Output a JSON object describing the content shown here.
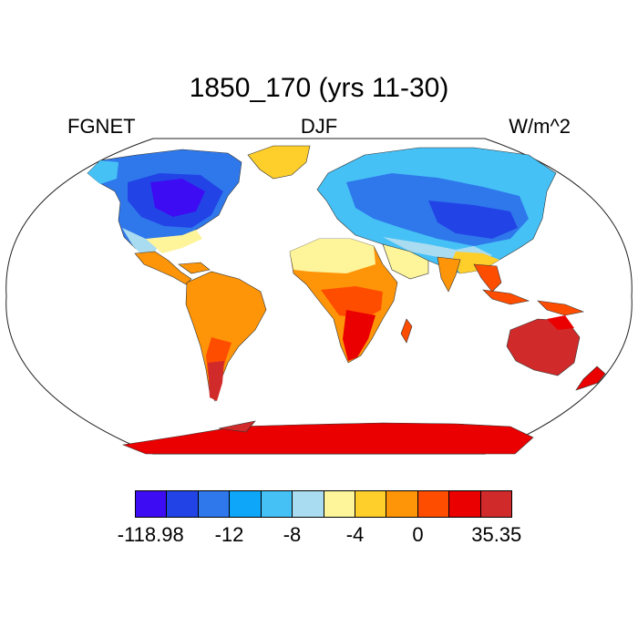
{
  "title": "1850_170 (yrs 11-30)",
  "subtitle_left": "FGNET",
  "subtitle_center": "DJF",
  "subtitle_right": "W/m^2",
  "colorbar": {
    "colors": [
      "#3e0cf2",
      "#2244e6",
      "#2f78ec",
      "#0da6f8",
      "#45c1f5",
      "#a9dcf1",
      "#fef49a",
      "#fece2b",
      "#fe9508",
      "#ff4d00",
      "#ea0000",
      "#d12a2a"
    ],
    "labels": [
      "-118.98",
      "-12",
      "-8",
      "-4",
      "0",
      "35.35"
    ]
  },
  "regions": [
    {
      "name": "Greenland",
      "value": "-4"
    },
    {
      "name": "North America",
      "value": "-118.98"
    },
    {
      "name": "Eurasia",
      "value": "-12"
    },
    {
      "name": "Sahara",
      "value": "-4"
    },
    {
      "name": "South America",
      "value": "0"
    },
    {
      "name": "Africa",
      "value": "0"
    },
    {
      "name": "Australia",
      "value": "35.35"
    },
    {
      "name": "Antarctica",
      "value": "35.35"
    }
  ]
}
